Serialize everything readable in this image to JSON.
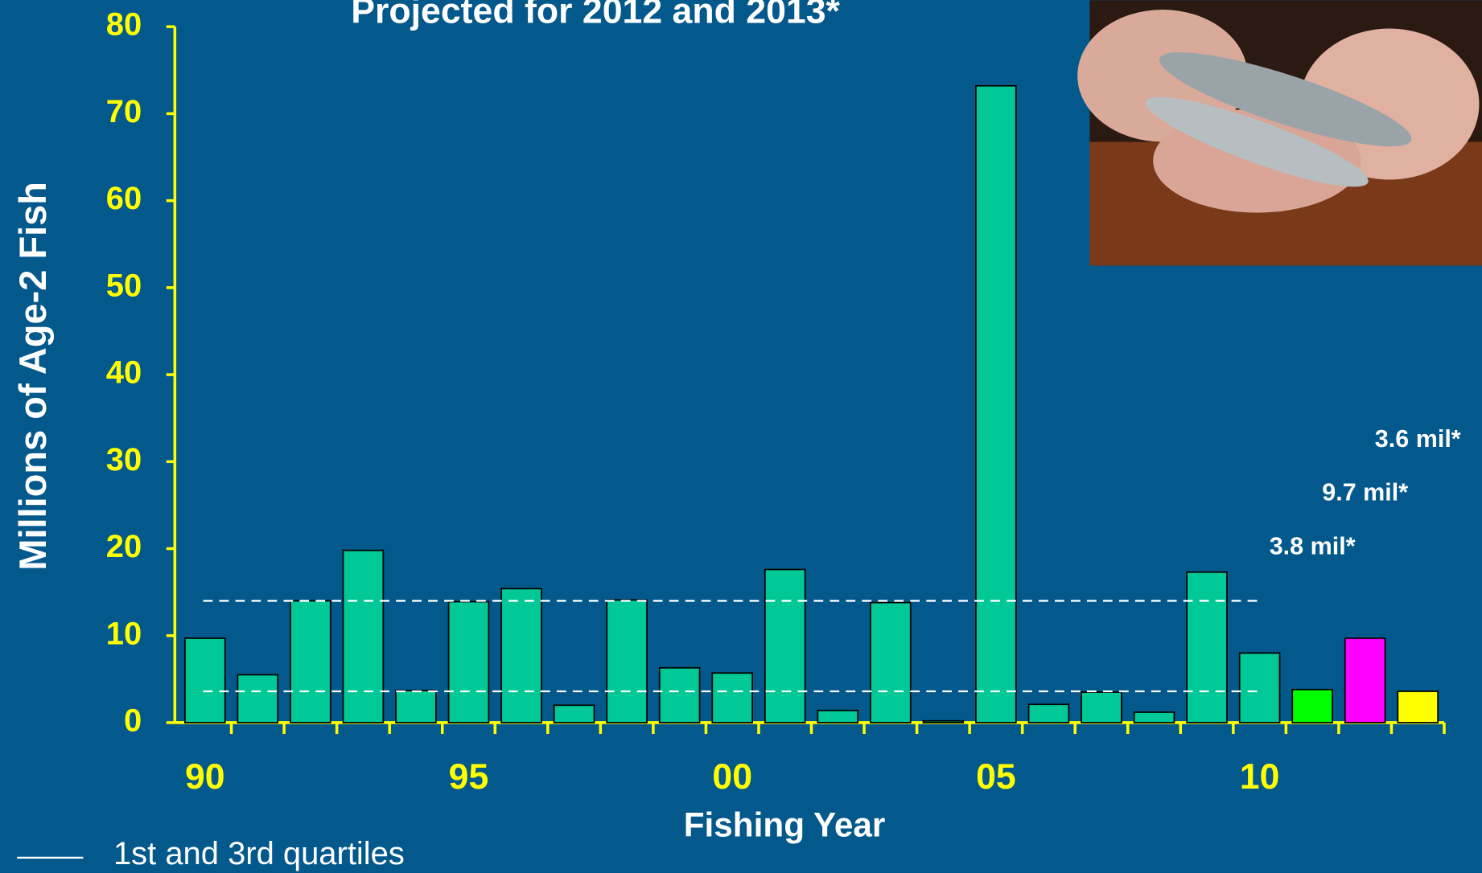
{
  "chart_data": {
    "type": "bar",
    "title": "Projected for 2012 and 2013*",
    "y_label": "Millions of  Age-2 Fish",
    "x_label": "Fishing Year",
    "categories": [
      "90",
      null,
      null,
      null,
      null,
      "95",
      null,
      null,
      null,
      null,
      "00",
      null,
      null,
      null,
      null,
      "05",
      null,
      null,
      null,
      null,
      "10",
      null,
      null,
      null
    ],
    "values": [
      9.7,
      5.5,
      14,
      19.8,
      3.7,
      13.9,
      15.4,
      2.0,
      14.1,
      6.3,
      5.7,
      17.6,
      1.4,
      13.8,
      0.2,
      73.2,
      2.1,
      3.5,
      1.2,
      17.3,
      8.0,
      3.8,
      9.7,
      3.6
    ],
    "value_labels": [
      null,
      null,
      null,
      null,
      null,
      null,
      null,
      null,
      null,
      null,
      null,
      null,
      null,
      null,
      null,
      null,
      null,
      null,
      null,
      null,
      null,
      "3.8 mil*",
      "9.7 mil*",
      "3.6 mil*"
    ],
    "colors": [
      "#00C896",
      "#00C896",
      "#00C896",
      "#00C896",
      "#00C896",
      "#00C896",
      "#00C896",
      "#00C896",
      "#00C896",
      "#00C896",
      "#00C896",
      "#00C896",
      "#00C896",
      "#00C896",
      "#00C896",
      "#00C896",
      "#00C896",
      "#00C896",
      "#00C896",
      "#00C896",
      "#00C896",
      "#00FF00",
      "#FF00FF",
      "#FFFF00"
    ],
    "ylim": [
      0,
      80
    ],
    "yticks": [
      0,
      10,
      20,
      30,
      40,
      50,
      60,
      70,
      80
    ],
    "quartiles": [
      14,
      3.6
    ],
    "quartile_legend": "1st and 3rd quartiles"
  }
}
